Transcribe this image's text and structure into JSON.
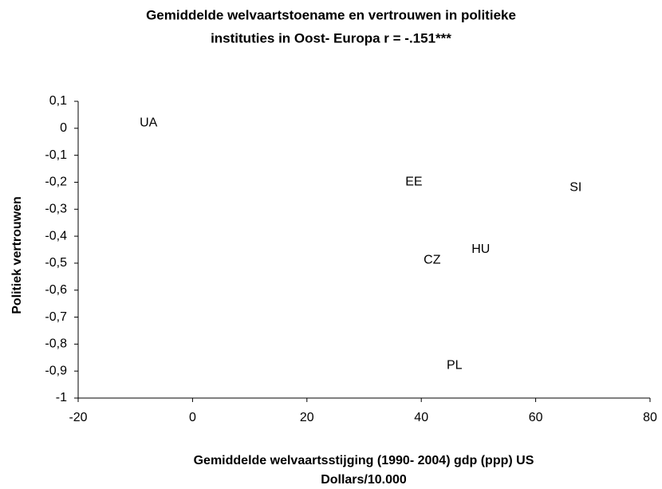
{
  "chart_data": {
    "type": "scatter",
    "title": [
      "Gemiddelde welvaartstoename en vertrouwen in politieke",
      "instituties in Oost- Europa r = -.151***"
    ],
    "x_label": [
      "Gemiddelde welvaartsstijging (1990- 2004) gdp (ppp) US",
      "Dollars/10.000"
    ],
    "y_label": "Politiek vertrouwen",
    "labels": [
      "UA",
      "EE",
      "SI",
      "HU",
      "CZ",
      "PL"
    ],
    "x": [
      -7.7,
      38.7,
      67,
      50.4,
      41.9,
      45.8
    ],
    "values": [
      0.02,
      -0.2,
      -0.22,
      -0.45,
      -0.49,
      -0.88
    ],
    "xlim": [
      -20,
      80
    ],
    "xticks": [
      -20,
      0,
      20,
      40,
      60,
      80
    ],
    "ylim": [
      -1,
      0.1
    ],
    "yticks": [
      {
        "value": 0.1,
        "label": "0,1"
      },
      0,
      {
        "value": -0.1,
        "label": "-0,1"
      },
      {
        "value": -0.2,
        "label": "-0,2"
      },
      {
        "value": -0.3,
        "label": "-0,3"
      },
      {
        "value": -0.4,
        "label": "-0,4"
      },
      {
        "value": -0.5,
        "label": "-0,5"
      },
      {
        "value": -0.6,
        "label": "-0,6"
      },
      {
        "value": -0.7,
        "label": "-0,7"
      },
      {
        "value": -0.8,
        "label": "-0,8"
      },
      {
        "value": -0.9,
        "label": "-0,9"
      },
      -1
    ],
    "grid": false
  }
}
